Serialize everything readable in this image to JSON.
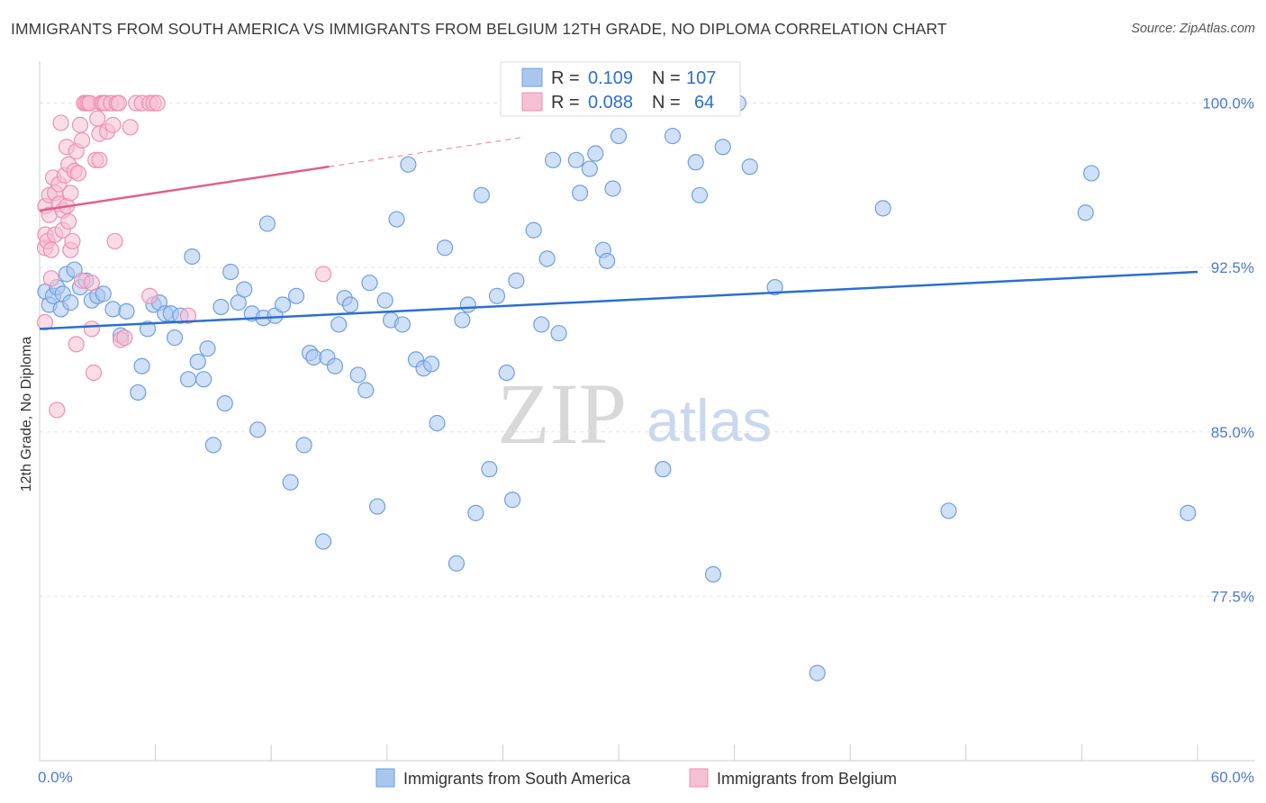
{
  "header": {
    "title": "IMMIGRANTS FROM SOUTH AMERICA VS IMMIGRANTS FROM BELGIUM 12TH GRADE, NO DIPLOMA CORRELATION CHART",
    "source": "Source: ZipAtlas.com"
  },
  "watermark": {
    "zip": "ZIP",
    "atlas": "atlas"
  },
  "chart_data": {
    "type": "scatter",
    "title": "IMMIGRANTS FROM SOUTH AMERICA VS IMMIGRANTS FROM BELGIUM 12TH GRADE, NO DIPLOMA CORRELATION CHART",
    "xlabel": "",
    "ylabel": "12th Grade, No Diploma",
    "xlim": [
      0,
      60
    ],
    "ylim": [
      70,
      101.5
    ],
    "x_tick_labels": [
      "0.0%",
      "60.0%"
    ],
    "y_ticks": [
      77.5,
      85.0,
      92.5,
      100.0
    ],
    "y_tick_labels": [
      "77.5%",
      "85.0%",
      "92.5%",
      "100.0%"
    ],
    "grid": true,
    "legend_position": "bottom",
    "stats": [
      {
        "r_label": "R =",
        "r_value": "0.109",
        "n_label": "N =",
        "n_value": "107"
      },
      {
        "r_label": "R =",
        "r_value": "0.088",
        "n_label": "N =",
        "n_value": "64"
      }
    ],
    "series": [
      {
        "name": "Immigrants from South America",
        "color": "#6fa0e0",
        "fill": "#a9c6ef",
        "line_color": "#2b6fd0",
        "trend": {
          "x": [
            0,
            60
          ],
          "y": [
            89.7,
            92.3
          ]
        },
        "points": [
          [
            0.3,
            91.4
          ],
          [
            0.5,
            90.8
          ],
          [
            0.7,
            91.2
          ],
          [
            0.9,
            91.6
          ],
          [
            1.1,
            90.6
          ],
          [
            1.2,
            91.3
          ],
          [
            1.4,
            92.2
          ],
          [
            1.6,
            90.9
          ],
          [
            1.8,
            92.4
          ],
          [
            2.1,
            91.6
          ],
          [
            2.4,
            91.9
          ],
          [
            2.7,
            91.0
          ],
          [
            3.0,
            91.2
          ],
          [
            3.3,
            91.3
          ],
          [
            3.8,
            90.6
          ],
          [
            4.2,
            89.4
          ],
          [
            4.5,
            90.5
          ],
          [
            5.1,
            86.8
          ],
          [
            5.3,
            88.0
          ],
          [
            5.6,
            89.7
          ],
          [
            5.9,
            90.8
          ],
          [
            6.2,
            90.9
          ],
          [
            6.5,
            90.4
          ],
          [
            6.8,
            90.4
          ],
          [
            7.0,
            89.3
          ],
          [
            7.3,
            90.3
          ],
          [
            7.7,
            87.4
          ],
          [
            7.9,
            93.0
          ],
          [
            8.2,
            88.2
          ],
          [
            8.5,
            87.4
          ],
          [
            8.7,
            88.8
          ],
          [
            9.0,
            84.4
          ],
          [
            9.4,
            90.7
          ],
          [
            9.6,
            86.3
          ],
          [
            9.9,
            92.3
          ],
          [
            10.3,
            90.9
          ],
          [
            10.6,
            91.5
          ],
          [
            11.0,
            90.4
          ],
          [
            11.3,
            85.1
          ],
          [
            11.6,
            90.2
          ],
          [
            11.8,
            94.5
          ],
          [
            12.2,
            90.3
          ],
          [
            12.6,
            90.8
          ],
          [
            13.0,
            82.7
          ],
          [
            13.3,
            91.2
          ],
          [
            13.7,
            84.4
          ],
          [
            14.0,
            88.6
          ],
          [
            14.2,
            88.4
          ],
          [
            14.7,
            80.0
          ],
          [
            14.9,
            88.4
          ],
          [
            15.3,
            88.0
          ],
          [
            15.5,
            89.9
          ],
          [
            15.8,
            91.1
          ],
          [
            16.1,
            90.8
          ],
          [
            16.5,
            87.6
          ],
          [
            16.9,
            86.9
          ],
          [
            17.1,
            91.8
          ],
          [
            17.5,
            81.6
          ],
          [
            17.9,
            91.0
          ],
          [
            18.2,
            90.1
          ],
          [
            18.5,
            94.7
          ],
          [
            18.8,
            89.9
          ],
          [
            19.1,
            97.2
          ],
          [
            19.5,
            88.3
          ],
          [
            19.9,
            87.9
          ],
          [
            20.3,
            88.1
          ],
          [
            20.6,
            85.4
          ],
          [
            21.0,
            93.4
          ],
          [
            21.6,
            79.0
          ],
          [
            21.9,
            90.1
          ],
          [
            22.2,
            90.8
          ],
          [
            22.6,
            81.3
          ],
          [
            22.9,
            95.8
          ],
          [
            23.3,
            83.3
          ],
          [
            23.7,
            91.2
          ],
          [
            24.2,
            87.7
          ],
          [
            24.5,
            81.9
          ],
          [
            24.7,
            91.9
          ],
          [
            25.1,
            100.0
          ],
          [
            25.6,
            94.2
          ],
          [
            26.0,
            89.9
          ],
          [
            26.3,
            92.9
          ],
          [
            26.6,
            97.4
          ],
          [
            26.9,
            89.5
          ],
          [
            27.8,
            97.4
          ],
          [
            28.0,
            95.9
          ],
          [
            28.5,
            97.0
          ],
          [
            28.8,
            97.7
          ],
          [
            29.2,
            93.3
          ],
          [
            29.4,
            92.8
          ],
          [
            29.7,
            96.1
          ],
          [
            30.0,
            98.5
          ],
          [
            32.3,
            83.3
          ],
          [
            32.8,
            98.5
          ],
          [
            34.0,
            97.3
          ],
          [
            34.2,
            95.8
          ],
          [
            34.9,
            78.5
          ],
          [
            35.4,
            98.0
          ],
          [
            36.2,
            100.0
          ],
          [
            36.8,
            97.1
          ],
          [
            38.1,
            91.6
          ],
          [
            40.3,
            74.0
          ],
          [
            43.7,
            95.2
          ],
          [
            47.1,
            81.4
          ],
          [
            54.2,
            95.0
          ],
          [
            54.5,
            96.8
          ],
          [
            59.5,
            81.3
          ]
        ]
      },
      {
        "name": "Immigrants from Belgium",
        "color": "#ee8fb2",
        "fill": "#f6c0d4",
        "line_color": "#e25f8a",
        "trend": {
          "x": [
            0,
            15
          ],
          "y": [
            95.1,
            97.1
          ]
        },
        "points": [
          [
            0.1,
            90.0
          ],
          [
            0.2,
            93.4
          ],
          [
            0.3,
            94.0
          ],
          [
            0.3,
            95.3
          ],
          [
            0.4,
            93.7
          ],
          [
            0.5,
            94.9
          ],
          [
            0.5,
            95.8
          ],
          [
            0.6,
            92.0
          ],
          [
            0.6,
            93.3
          ],
          [
            0.7,
            96.6
          ],
          [
            0.8,
            94.0
          ],
          [
            0.8,
            95.9
          ],
          [
            0.9,
            86.0
          ],
          [
            1.0,
            95.4
          ],
          [
            1.0,
            96.3
          ],
          [
            1.1,
            99.1
          ],
          [
            1.2,
            94.2
          ],
          [
            1.2,
            95.1
          ],
          [
            1.3,
            96.7
          ],
          [
            1.4,
            95.3
          ],
          [
            1.4,
            98.0
          ],
          [
            1.5,
            97.2
          ],
          [
            1.5,
            94.6
          ],
          [
            1.6,
            95.9
          ],
          [
            1.6,
            93.3
          ],
          [
            1.7,
            93.7
          ],
          [
            1.8,
            96.9
          ],
          [
            1.9,
            89.0
          ],
          [
            1.9,
            97.8
          ],
          [
            2.0,
            96.8
          ],
          [
            2.1,
            99.0
          ],
          [
            2.2,
            91.9
          ],
          [
            2.2,
            98.3
          ],
          [
            2.3,
            100.0
          ],
          [
            2.4,
            100.0
          ],
          [
            2.5,
            100.0
          ],
          [
            2.6,
            100.0
          ],
          [
            2.7,
            89.7
          ],
          [
            2.7,
            91.8
          ],
          [
            2.8,
            87.7
          ],
          [
            2.9,
            97.4
          ],
          [
            3.0,
            99.3
          ],
          [
            3.1,
            98.6
          ],
          [
            3.1,
            97.4
          ],
          [
            3.2,
            100.0
          ],
          [
            3.3,
            100.0
          ],
          [
            3.4,
            100.0
          ],
          [
            3.5,
            98.7
          ],
          [
            3.7,
            100.0
          ],
          [
            3.8,
            99.0
          ],
          [
            3.9,
            93.7
          ],
          [
            4.0,
            100.0
          ],
          [
            4.1,
            100.0
          ],
          [
            4.2,
            89.2
          ],
          [
            4.4,
            89.3
          ],
          [
            4.7,
            98.9
          ],
          [
            5.0,
            100.0
          ],
          [
            5.3,
            100.0
          ],
          [
            5.7,
            100.0
          ],
          [
            5.9,
            100.0
          ],
          [
            6.1,
            100.0
          ],
          [
            5.7,
            91.2
          ],
          [
            7.7,
            90.3
          ],
          [
            14.7,
            92.2
          ]
        ]
      }
    ]
  },
  "legend": {
    "items": [
      "Immigrants from South America",
      "Immigrants from Belgium"
    ]
  }
}
